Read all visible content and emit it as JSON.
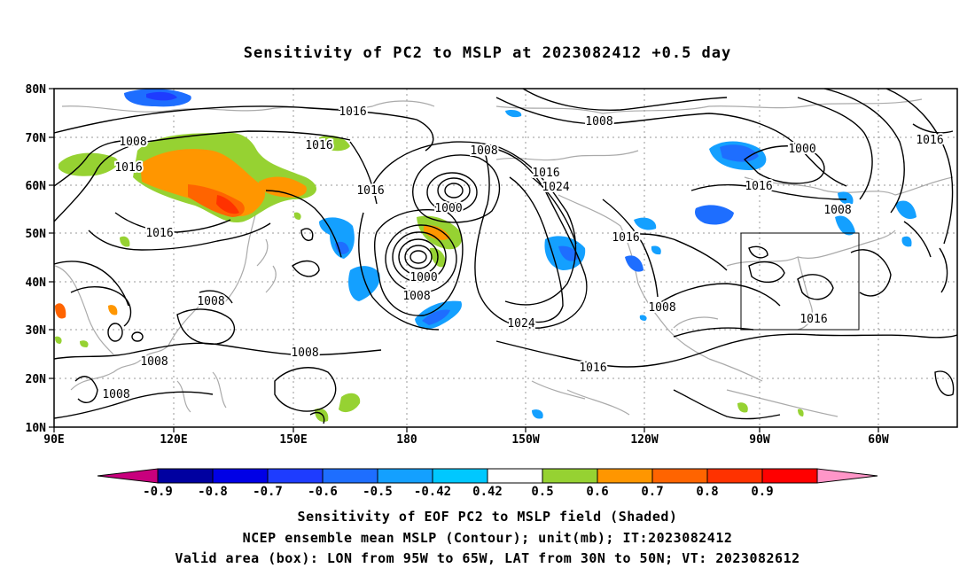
{
  "title": "Sensitivity of PC2 to MSLP at 2023082412 +0.5 day",
  "map": {
    "lat_labels": [
      "80N",
      "70N",
      "60N",
      "50N",
      "40N",
      "30N",
      "20N",
      "10N"
    ],
    "lon_labels": [
      "90E",
      "120E",
      "150E",
      "180",
      "150W",
      "120W",
      "90W",
      "60W"
    ],
    "box": {
      "lon_from": "95W",
      "lon_to": "65W",
      "lat_from": "30N",
      "lat_to": "50N"
    },
    "contour_labels": [
      "1016",
      "1008",
      "1016",
      "1016",
      "1016",
      "1008",
      "1000",
      "1016",
      "1024",
      "1016",
      "1000",
      "1000",
      "1016",
      "1008",
      "1016",
      "1016",
      "1008",
      "1024",
      "1008",
      "1016",
      "1016",
      "1008",
      "1008",
      "1008",
      "1008"
    ]
  },
  "colorbar": {
    "ticks": [
      "-0.9",
      "-0.8",
      "-0.7",
      "-0.6",
      "-0.5",
      "-0.42",
      "0.42",
      "0.5",
      "0.6",
      "0.7",
      "0.8",
      "0.9"
    ],
    "colors": [
      "#c8007d",
      "#0000a0",
      "#0000e6",
      "#1e3cff",
      "#1e6eff",
      "#14a0ff",
      "#00c8ff",
      "#ffffff",
      "#96d232",
      "#ff9600",
      "#ff6400",
      "#ff3200",
      "#ff0000",
      "#ff96c8"
    ]
  },
  "captions": {
    "line1": "Sensitivity of EOF PC2 to MSLP field (Shaded)",
    "line2": "NCEP ensemble mean MSLP (Contour); unit(mb); IT:2023082412",
    "line3": "Valid area (box): LON from 95W to 65W, LAT from 30N to 50N; VT: 2023082612"
  }
}
